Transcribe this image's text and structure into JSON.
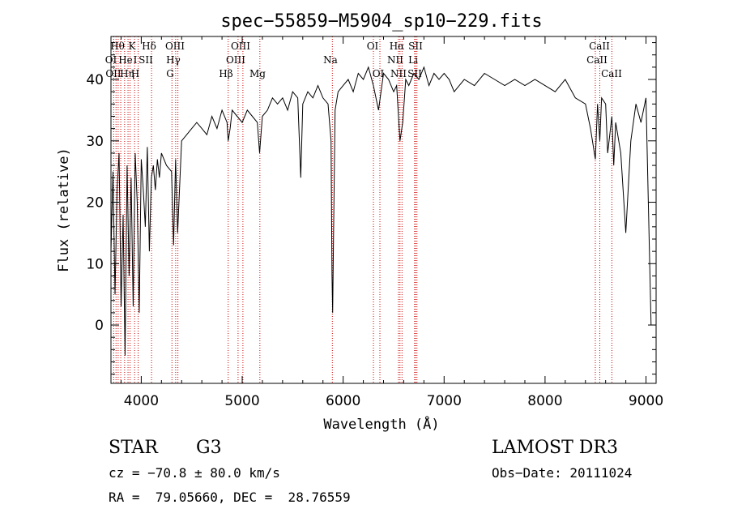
{
  "chart_data": {
    "type": "line",
    "title": "spec−55859−M5904_sp10−229.fits",
    "xlabel": "Wavelength (Å)",
    "ylabel": "Flux (relative)",
    "xlim": [
      3700,
      9100
    ],
    "ylim": [
      -9.5,
      47
    ],
    "x_ticks": [
      4000,
      5000,
      6000,
      7000,
      8000,
      9000
    ],
    "y_ticks": [
      0,
      10,
      20,
      30,
      40
    ],
    "series": [
      {
        "name": "flux",
        "x": [
          3700,
          3720,
          3740,
          3760,
          3780,
          3800,
          3820,
          3840,
          3860,
          3880,
          3900,
          3920,
          3940,
          3960,
          3980,
          4000,
          4020,
          4040,
          4060,
          4080,
          4100,
          4120,
          4140,
          4160,
          4180,
          4200,
          4250,
          4300,
          4320,
          4340,
          4360,
          4400,
          4450,
          4500,
          4550,
          4600,
          4650,
          4700,
          4750,
          4800,
          4850,
          4861,
          4880,
          4900,
          4950,
          5000,
          5050,
          5100,
          5150,
          5172,
          5200,
          5250,
          5300,
          5350,
          5400,
          5450,
          5500,
          5550,
          5580,
          5600,
          5650,
          5700,
          5750,
          5800,
          5850,
          5880,
          5890,
          5896,
          5905,
          5920,
          5950,
          6000,
          6050,
          6100,
          6150,
          6200,
          6250,
          6300,
          6350,
          6400,
          6450,
          6500,
          6530,
          6563,
          6590,
          6620,
          6650,
          6700,
          6750,
          6800,
          6850,
          6900,
          6950,
          7000,
          7050,
          7100,
          7200,
          7300,
          7400,
          7500,
          7600,
          7700,
          7800,
          7900,
          8000,
          8100,
          8200,
          8300,
          8400,
          8450,
          8498,
          8520,
          8542,
          8560,
          8600,
          8620,
          8662,
          8680,
          8700,
          8750,
          8800,
          8850,
          8900,
          8950,
          9000,
          9050,
          9100
        ],
        "y": [
          12,
          25,
          5,
          22,
          28,
          3,
          18,
          -5,
          26,
          8,
          24,
          3,
          28,
          20,
          2,
          27,
          22,
          16,
          29,
          12,
          24,
          26,
          22,
          27,
          24,
          28,
          26,
          25,
          13,
          27,
          15,
          30,
          31,
          32,
          33,
          32,
          31,
          34,
          32,
          35,
          33,
          30,
          32,
          35,
          34,
          33,
          35,
          34,
          33,
          28,
          34,
          35,
          37,
          36,
          37,
          35,
          38,
          37,
          24,
          36,
          38,
          37,
          39,
          37,
          36,
          30,
          8,
          2,
          15,
          35,
          38,
          39,
          40,
          38,
          41,
          40,
          42,
          39,
          35,
          41,
          40,
          38,
          39,
          30,
          33,
          40,
          39,
          41,
          40,
          42,
          39,
          41,
          40,
          41,
          40,
          38,
          40,
          39,
          41,
          40,
          39,
          40,
          39,
          40,
          39,
          38,
          40,
          37,
          36,
          32,
          27,
          36,
          30,
          37,
          36,
          28,
          34,
          26,
          33,
          28,
          15,
          30,
          36,
          33,
          37,
          0,
          0
        ]
      }
    ],
    "line_labels": {
      "row1": [
        "Hθ",
        "K",
        "Hδ",
        "OIII",
        "OIII",
        "OI",
        "Hα",
        "SII",
        "CaII"
      ],
      "row2": [
        "OI",
        "He",
        "I",
        "SII",
        "Hγ",
        "OIII",
        "Na",
        "NII",
        "Li",
        "CaII"
      ],
      "row3": [
        "OII",
        "Hη",
        "H",
        "G",
        "Hβ",
        "Mg",
        "OI",
        "NII",
        "SII",
        "CaII"
      ]
    },
    "line_positions": [
      3727,
      3750,
      3771,
      3797,
      3835,
      3869,
      3889,
      3934,
      3969,
      4102,
      4304,
      4341,
      4363,
      4861,
      4959,
      5007,
      5175,
      5893,
      6300,
      6364,
      6548,
      6563,
      6583,
      6708,
      6716,
      6731,
      8498,
      8542,
      8662
    ]
  },
  "info": {
    "obj_type": "STAR",
    "subclass": "G3",
    "survey": "LAMOST DR3",
    "cz": "cz = −70.8 ± 80.0 km/s",
    "obs_date": "Obs−Date: 20111024",
    "radec": "RA =  79.05660, DEC =  28.76559"
  }
}
